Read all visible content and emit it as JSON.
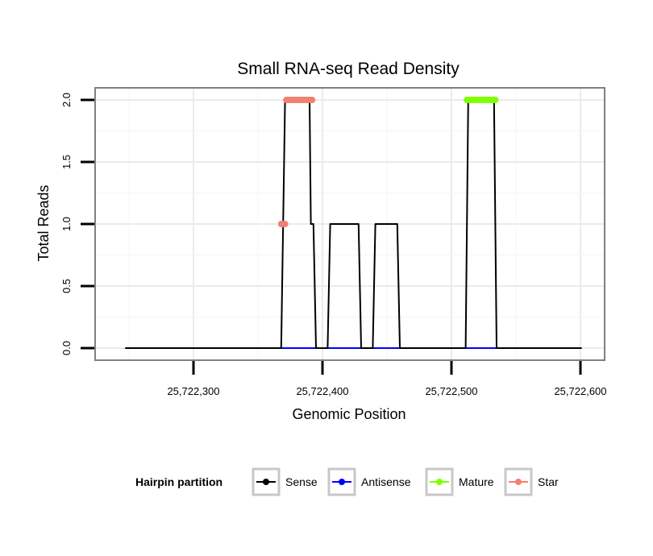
{
  "chart_data": {
    "type": "line",
    "title": "Small RNA-seq Read Density",
    "xlabel": "Genomic Position",
    "ylabel": "Total Reads",
    "xlim": [
      25722230,
      25722630
    ],
    "ylim": [
      -0.1,
      2.1
    ],
    "x_ticks": [
      {
        "value": 25722300,
        "label": "25,722,300"
      },
      {
        "value": 25722400,
        "label": "25,722,400"
      },
      {
        "value": 25722500,
        "label": "25,722,500"
      },
      {
        "value": 25722600,
        "label": "25,722,600"
      }
    ],
    "y_ticks": [
      {
        "value": 0.0,
        "label": "0.0"
      },
      {
        "value": 0.5,
        "label": "0.5"
      },
      {
        "value": 1.0,
        "label": "1.0"
      },
      {
        "value": 1.5,
        "label": "1.5"
      },
      {
        "value": 2.0,
        "label": "2.0"
      }
    ],
    "grid": true,
    "legend": {
      "title": "Hairpin partition",
      "position": "bottom",
      "entries": [
        {
          "name": "Sense",
          "color": "#000000"
        },
        {
          "name": "Antisense",
          "color": "#0000FF"
        },
        {
          "name": "Mature",
          "color": "#7FFF00"
        },
        {
          "name": "Star",
          "color": "#F08070"
        }
      ]
    },
    "series": [
      {
        "name": "Sense",
        "color": "#000000",
        "x": [
          25722247,
          25722368,
          25722371,
          25722374,
          25722390,
          25722391,
          25722393,
          25722395,
          25722404,
          25722406,
          25722428,
          25722430,
          25722439,
          25722441,
          25722458,
          25722460,
          25722511,
          25722513,
          25722533,
          25722535,
          25722601
        ],
        "y": [
          0,
          0,
          2,
          2,
          2,
          1,
          1,
          0,
          0,
          1,
          1,
          0,
          0,
          1,
          1,
          0,
          0,
          2,
          2,
          0,
          0
        ]
      },
      {
        "name": "Antisense",
        "color": "#0000FF",
        "x": [
          25722368,
          25722535
        ],
        "y": [
          0,
          0
        ]
      },
      {
        "name": "Mature",
        "color": "#7FFF00",
        "points_x_range": [
          25722512,
          25722534
        ],
        "points_y": 2
      },
      {
        "name": "Star",
        "color": "#F08070",
        "points": [
          {
            "x_range": [
              25722368,
              25722371
            ],
            "y": 1
          },
          {
            "x_range": [
              25722372,
              25722392
            ],
            "y": 2
          }
        ]
      }
    ]
  }
}
